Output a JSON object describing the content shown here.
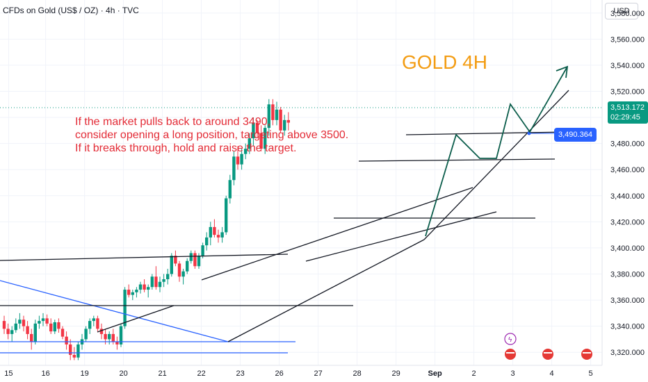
{
  "header": {
    "title": "CFDs on Gold (US$ / OZ) · 4h · TVC",
    "currency": "USD"
  },
  "annotation": {
    "title": "GOLD 4H",
    "note_lines": [
      "If the market pulls back to around 3490,",
      "consider opening a long position, targeting above 3500.",
      "If it breaks through, hold and raise the target."
    ]
  },
  "price_tag": {
    "price": "3,513.172",
    "countdown": "02:29:45"
  },
  "level_tag": "3,490.364",
  "colors": {
    "up": "#089981",
    "down": "#f23645",
    "trend": "#000000",
    "channel": "#2962ff",
    "title": "#f39c12",
    "note": "#e32b36"
  },
  "chart_data": {
    "type": "candlestick",
    "ylim": [
      3310,
      3590
    ],
    "y_ticks": [
      3320,
      3340,
      3360,
      3380,
      3400,
      3420,
      3440,
      3460,
      3480,
      3500,
      3520,
      3540,
      3560,
      3580
    ],
    "y_tick_labels": [
      "3,320.000",
      "3,340.000",
      "3,360.000",
      "3,380.000",
      "3,400.000",
      "3,420.000",
      "3,440.000",
      "3,460.000",
      "3,480.000",
      "3,500.000",
      "3,520.000",
      "3,540.000",
      "3,560.000",
      "3,580.000"
    ],
    "x_ticks": [
      {
        "label": "15",
        "i": 1.5
      },
      {
        "label": "16",
        "i": 11
      },
      {
        "label": "19",
        "i": 21
      },
      {
        "label": "20",
        "i": 31
      },
      {
        "label": "21",
        "i": 41
      },
      {
        "label": "22",
        "i": 51
      },
      {
        "label": "23",
        "i": 61
      },
      {
        "label": "26",
        "i": 71
      },
      {
        "label": "27",
        "i": 81
      },
      {
        "label": "28",
        "i": 91
      },
      {
        "label": "29",
        "i": 101
      },
      {
        "label": "Sep",
        "i": 111
      },
      {
        "label": "2",
        "i": 121
      },
      {
        "label": "3",
        "i": 131
      },
      {
        "label": "4",
        "i": 141
      },
      {
        "label": "5",
        "i": 151
      }
    ],
    "candles": [
      [
        3344,
        3348,
        3334,
        3338
      ],
      [
        3338,
        3342,
        3330,
        3334
      ],
      [
        3334,
        3340,
        3328,
        3337
      ],
      [
        3337,
        3346,
        3335,
        3342
      ],
      [
        3342,
        3350,
        3338,
        3345
      ],
      [
        3345,
        3348,
        3336,
        3340
      ],
      [
        3340,
        3344,
        3330,
        3334
      ],
      [
        3334,
        3338,
        3322,
        3328
      ],
      [
        3328,
        3345,
        3326,
        3342
      ],
      [
        3342,
        3348,
        3338,
        3344
      ],
      [
        3344,
        3350,
        3340,
        3346
      ],
      [
        3346,
        3349,
        3340,
        3342
      ],
      [
        3342,
        3346,
        3334,
        3336
      ],
      [
        3336,
        3345,
        3334,
        3343
      ],
      [
        3343,
        3346,
        3335,
        3338
      ],
      [
        3338,
        3340,
        3330,
        3332
      ],
      [
        3332,
        3336,
        3322,
        3326
      ],
      [
        3326,
        3330,
        3314,
        3318
      ],
      [
        3318,
        3324,
        3314,
        3316
      ],
      [
        3316,
        3328,
        3314,
        3326
      ],
      [
        3326,
        3334,
        3322,
        3330
      ],
      [
        3330,
        3340,
        3328,
        3338
      ],
      [
        3338,
        3346,
        3334,
        3344
      ],
      [
        3344,
        3348,
        3340,
        3346
      ],
      [
        3346,
        3348,
        3336,
        3338
      ],
      [
        3338,
        3342,
        3330,
        3334
      ],
      [
        3334,
        3338,
        3326,
        3330
      ],
      [
        3330,
        3336,
        3326,
        3334
      ],
      [
        3334,
        3338,
        3326,
        3328
      ],
      [
        3328,
        3332,
        3322,
        3326
      ],
      [
        3326,
        3342,
        3324,
        3340
      ],
      [
        3340,
        3370,
        3338,
        3368
      ],
      [
        3368,
        3372,
        3362,
        3364
      ],
      [
        3364,
        3368,
        3360,
        3366
      ],
      [
        3366,
        3370,
        3362,
        3368
      ],
      [
        3368,
        3374,
        3365,
        3372
      ],
      [
        3372,
        3376,
        3366,
        3368
      ],
      [
        3368,
        3372,
        3362,
        3370
      ],
      [
        3370,
        3380,
        3368,
        3378
      ],
      [
        3378,
        3386,
        3368,
        3370
      ],
      [
        3370,
        3378,
        3366,
        3374
      ],
      [
        3374,
        3380,
        3370,
        3376
      ],
      [
        3376,
        3384,
        3372,
        3380
      ],
      [
        3380,
        3396,
        3378,
        3394
      ],
      [
        3394,
        3398,
        3386,
        3388
      ],
      [
        3388,
        3390,
        3374,
        3378
      ],
      [
        3378,
        3384,
        3372,
        3382
      ],
      [
        3382,
        3392,
        3380,
        3390
      ],
      [
        3390,
        3398,
        3388,
        3396
      ],
      [
        3396,
        3398,
        3384,
        3386
      ],
      [
        3386,
        3396,
        3384,
        3394
      ],
      [
        3394,
        3404,
        3392,
        3402
      ],
      [
        3402,
        3412,
        3398,
        3408
      ],
      [
        3408,
        3420,
        3402,
        3416
      ],
      [
        3416,
        3422,
        3408,
        3410
      ],
      [
        3410,
        3414,
        3404,
        3408
      ],
      [
        3408,
        3416,
        3404,
        3412
      ],
      [
        3412,
        3440,
        3410,
        3438
      ],
      [
        3438,
        3456,
        3434,
        3452
      ],
      [
        3452,
        3474,
        3448,
        3470
      ],
      [
        3470,
        3478,
        3460,
        3464
      ],
      [
        3464,
        3476,
        3460,
        3472
      ],
      [
        3472,
        3480,
        3468,
        3476
      ],
      [
        3476,
        3488,
        3472,
        3484
      ],
      [
        3484,
        3500,
        3478,
        3496
      ],
      [
        3496,
        3498,
        3484,
        3488
      ],
      [
        3488,
        3494,
        3474,
        3476
      ],
      [
        3476,
        3494,
        3472,
        3492
      ],
      [
        3492,
        3514,
        3486,
        3510
      ],
      [
        3510,
        3514,
        3494,
        3498
      ],
      [
        3498,
        3512,
        3494,
        3506
      ],
      [
        3506,
        3508,
        3488,
        3490
      ],
      [
        3490,
        3502,
        3486,
        3498
      ],
      [
        3498,
        3504,
        3490,
        3496
      ]
    ]
  }
}
